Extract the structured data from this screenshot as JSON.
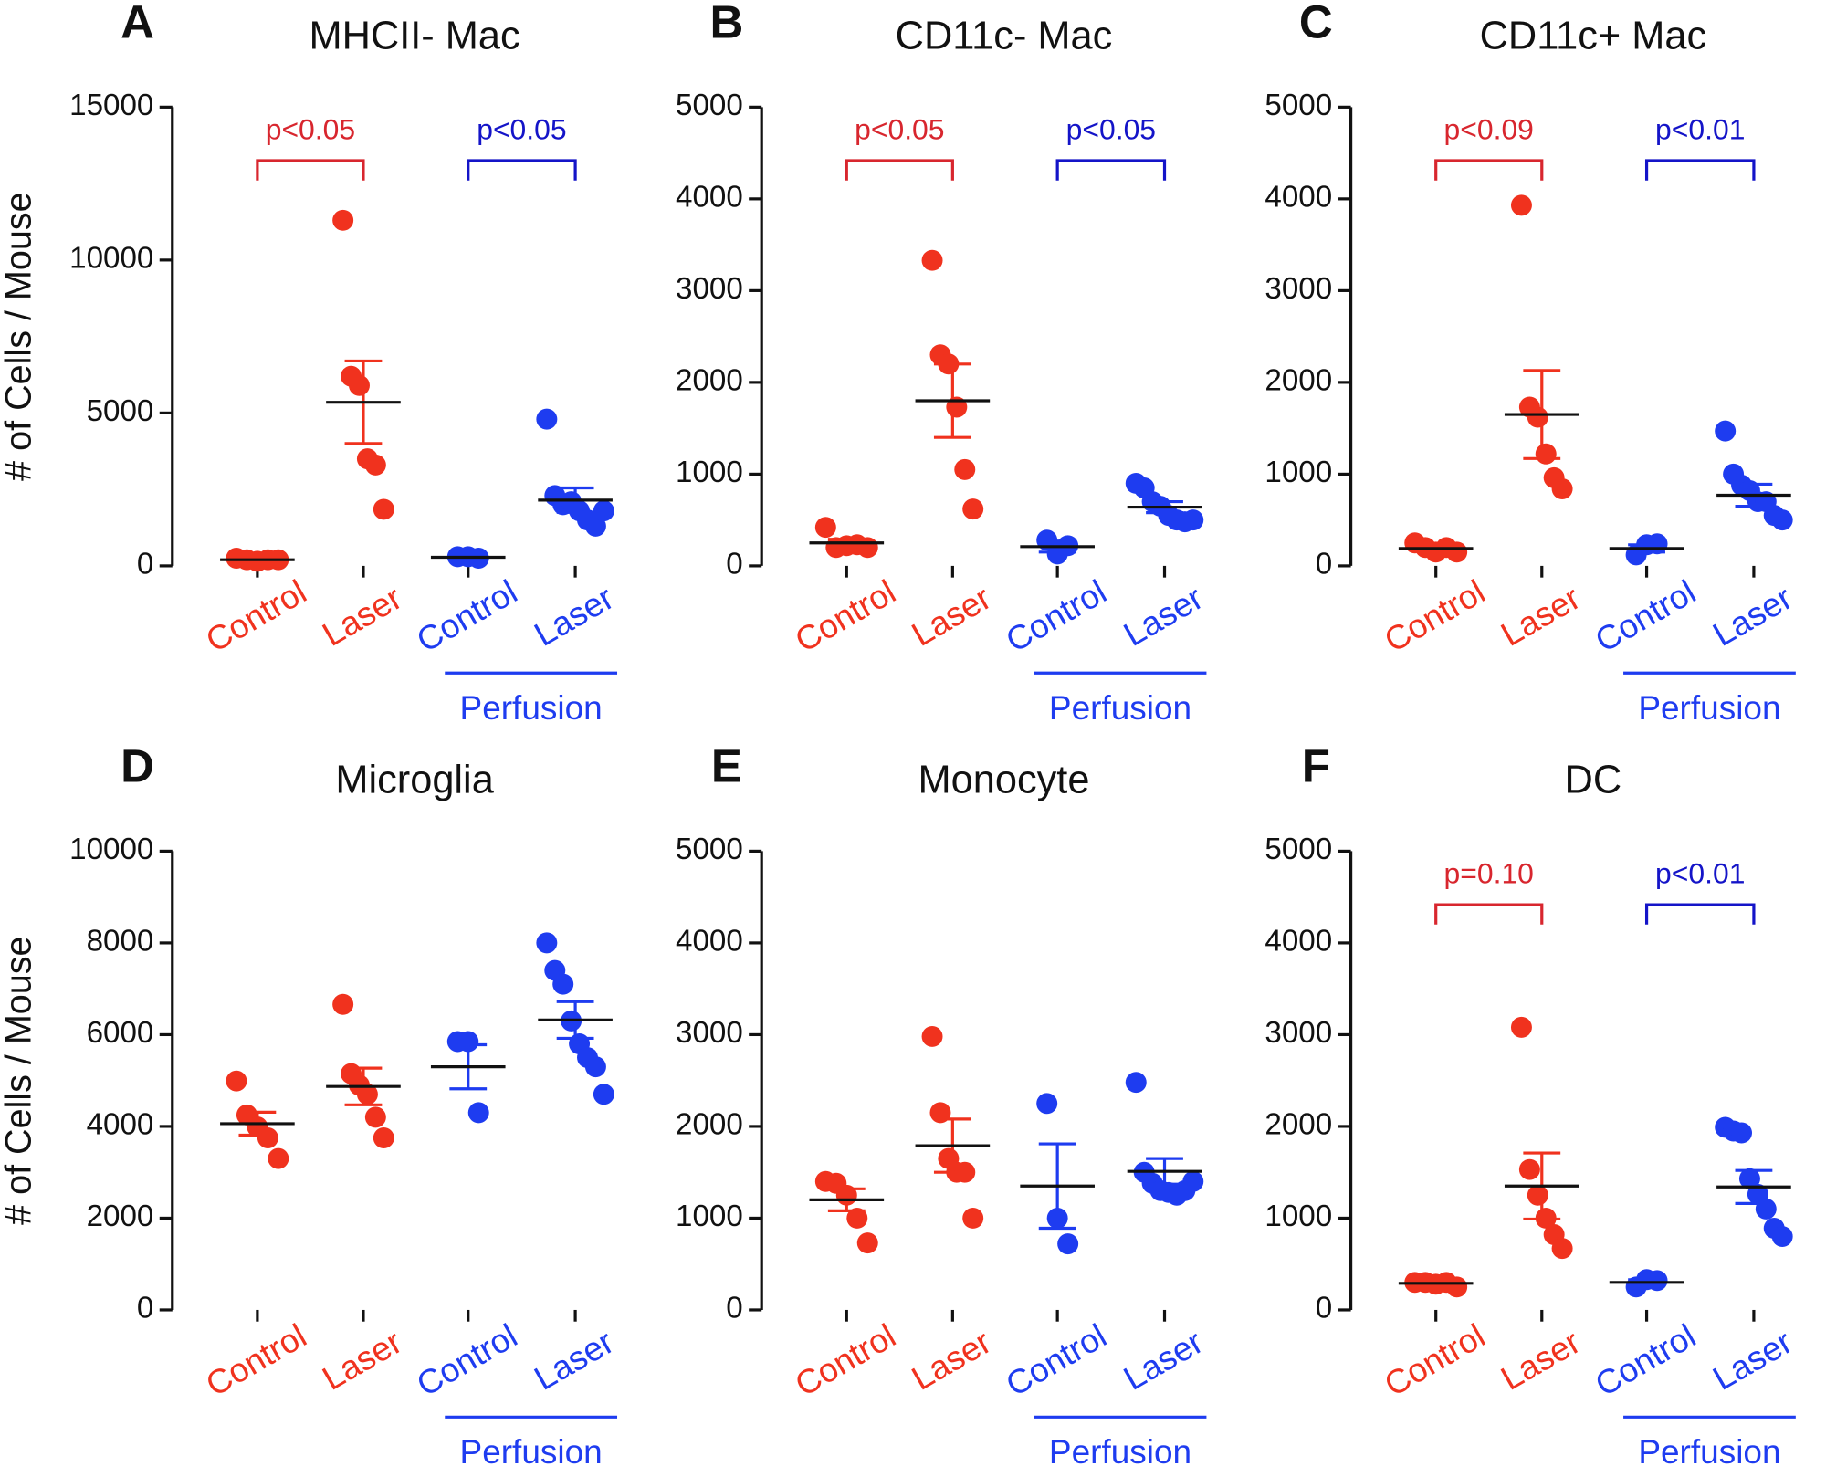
{
  "chart_data": [
    {
      "type": "scatter",
      "panel": "A",
      "title": "MHCII- Mac",
      "y_label": "# of Cells / Mouse",
      "ylim": [
        0,
        15000
      ],
      "yticks": [
        0,
        5000,
        10000,
        15000
      ],
      "group_label": "Perfusion",
      "groups": [
        {
          "category": "Control",
          "color": "#f0321e",
          "values": [
            250,
            200,
            150,
            200,
            200
          ],
          "mean": 200,
          "error": 20
        },
        {
          "category": "Laser",
          "color": "#f0321e",
          "values": [
            11300,
            6200,
            5900,
            3500,
            3300,
            1850
          ],
          "mean": 5350,
          "error": 1350
        },
        {
          "category": "Control",
          "color": "#1e3cf0",
          "values": [
            300,
            300,
            250
          ],
          "mean": 280,
          "error": 20
        },
        {
          "category": "Laser",
          "color": "#1e3cf0",
          "values": [
            4800,
            2300,
            2000,
            2100,
            1800,
            1500,
            1300,
            1800
          ],
          "mean": 2150,
          "error": 400
        }
      ],
      "comparisons": [
        {
          "label": "p<0.05",
          "color": "#d8262e"
        },
        {
          "label": "p<0.05",
          "color": "#1414c8"
        }
      ]
    },
    {
      "type": "scatter",
      "panel": "B",
      "title": "CD11c- Mac",
      "ylim": [
        0,
        5000
      ],
      "yticks": [
        0,
        1000,
        2000,
        3000,
        4000,
        5000
      ],
      "group_label": "Perfusion",
      "groups": [
        {
          "category": "Control",
          "color": "#f0321e",
          "values": [
            420,
            200,
            220,
            230,
            200
          ],
          "mean": 250,
          "error": 40
        },
        {
          "category": "Laser",
          "color": "#f0321e",
          "values": [
            3330,
            2300,
            2200,
            1730,
            1050,
            620
          ],
          "mean": 1800,
          "error": 400
        },
        {
          "category": "Control",
          "color": "#1e3cf0",
          "values": [
            280,
            130,
            220
          ],
          "mean": 210,
          "error": 60
        },
        {
          "category": "Laser",
          "color": "#1e3cf0",
          "values": [
            900,
            850,
            700,
            650,
            550,
            500,
            480,
            500
          ],
          "mean": 640,
          "error": 60
        }
      ],
      "comparisons": [
        {
          "label": "p<0.05",
          "color": "#d8262e"
        },
        {
          "label": "p<0.05",
          "color": "#1414c8"
        }
      ]
    },
    {
      "type": "scatter",
      "panel": "C",
      "title": "CD11c+ Mac",
      "ylim": [
        0,
        5000
      ],
      "yticks": [
        0,
        1000,
        2000,
        3000,
        4000,
        5000
      ],
      "group_label": "Perfusion",
      "groups": [
        {
          "category": "Control",
          "color": "#f0321e",
          "values": [
            250,
            200,
            150,
            200,
            150
          ],
          "mean": 190,
          "error": 25
        },
        {
          "category": "Laser",
          "color": "#f0321e",
          "values": [
            3930,
            1730,
            1620,
            1220,
            960,
            840
          ],
          "mean": 1650,
          "error": 480
        },
        {
          "category": "Control",
          "color": "#1e3cf0",
          "values": [
            120,
            230,
            240
          ],
          "mean": 190,
          "error": 40
        },
        {
          "category": "Laser",
          "color": "#1e3cf0",
          "values": [
            1470,
            1000,
            880,
            820,
            700,
            700,
            550,
            500
          ],
          "mean": 770,
          "error": 120
        }
      ],
      "comparisons": [
        {
          "label": "p<0.09",
          "color": "#d8262e"
        },
        {
          "label": "p<0.01",
          "color": "#1414c8"
        }
      ]
    },
    {
      "type": "scatter",
      "panel": "D",
      "title": "Microglia",
      "y_label": "# of Cells / Mouse",
      "ylim": [
        0,
        10000
      ],
      "yticks": [
        0,
        2000,
        4000,
        6000,
        8000,
        10000
      ],
      "group_label": "Perfusion",
      "groups": [
        {
          "category": "Control",
          "color": "#f0321e",
          "values": [
            4990,
            4250,
            3990,
            3750,
            3300
          ],
          "mean": 4060,
          "error": 250
        },
        {
          "category": "Laser",
          "color": "#f0321e",
          "values": [
            6660,
            5150,
            4900,
            4700,
            4200,
            3750
          ],
          "mean": 4870,
          "error": 400
        },
        {
          "category": "Control",
          "color": "#1e3cf0",
          "values": [
            5850,
            5850,
            4300
          ],
          "mean": 5300,
          "error": 480
        },
        {
          "category": "Laser",
          "color": "#1e3cf0",
          "values": [
            8000,
            7400,
            7100,
            6300,
            5800,
            5500,
            5300,
            4700
          ],
          "mean": 6320,
          "error": 400
        }
      ]
    },
    {
      "type": "scatter",
      "panel": "E",
      "title": "Monocyte",
      "ylim": [
        0,
        5000
      ],
      "yticks": [
        0,
        1000,
        2000,
        3000,
        4000,
        5000
      ],
      "group_label": "Perfusion",
      "groups": [
        {
          "category": "Control",
          "color": "#f0321e",
          "values": [
            1400,
            1380,
            1250,
            1000,
            730
          ],
          "mean": 1200,
          "error": 120
        },
        {
          "category": "Laser",
          "color": "#f0321e",
          "values": [
            2980,
            2150,
            1650,
            1500,
            1500,
            1000
          ],
          "mean": 1790,
          "error": 290
        },
        {
          "category": "Control",
          "color": "#1e3cf0",
          "values": [
            2250,
            1000,
            720
          ],
          "mean": 1350,
          "error": 460
        },
        {
          "category": "Laser",
          "color": "#1e3cf0",
          "values": [
            2480,
            1500,
            1380,
            1300,
            1280,
            1250,
            1300,
            1400
          ],
          "mean": 1510,
          "error": 140
        }
      ]
    },
    {
      "type": "scatter",
      "panel": "F",
      "title": "DC",
      "ylim": [
        0,
        5000
      ],
      "yticks": [
        0,
        1000,
        2000,
        3000,
        4000,
        5000
      ],
      "group_label": "Perfusion",
      "groups": [
        {
          "category": "Control",
          "color": "#f0321e",
          "values": [
            300,
            300,
            280,
            300,
            250
          ],
          "mean": 290,
          "error": 15
        },
        {
          "category": "Laser",
          "color": "#f0321e",
          "values": [
            3080,
            1530,
            1250,
            1000,
            820,
            670
          ],
          "mean": 1350,
          "error": 360
        },
        {
          "category": "Control",
          "color": "#1e3cf0",
          "values": [
            250,
            330,
            320
          ],
          "mean": 300,
          "error": 30
        },
        {
          "category": "Laser",
          "color": "#1e3cf0",
          "values": [
            1990,
            1950,
            1930,
            1430,
            1260,
            1100,
            890,
            800
          ],
          "mean": 1340,
          "error": 180
        }
      ],
      "comparisons": [
        {
          "label": "p=0.10",
          "color": "#d8262e"
        },
        {
          "label": "p<0.01",
          "color": "#1414c8"
        }
      ]
    }
  ]
}
